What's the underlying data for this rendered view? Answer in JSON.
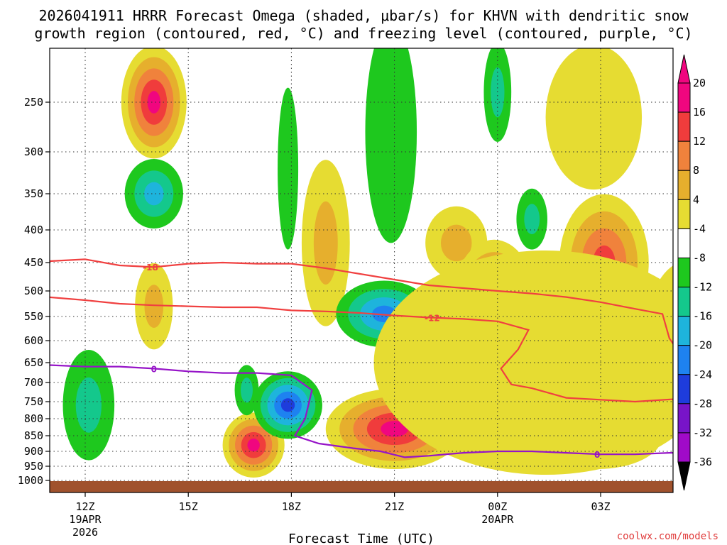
{
  "chart_data": {
    "type": "heatmap",
    "title_line1": "2026041911 HRRR Forecast Omega (shaded, μbar/s) for KHVN with dendritic snow",
    "title_line2": "growth region (contoured, red, °C) and freezing level (contoured, purple, °C)",
    "xlabel": "Forecast Time (UTC)",
    "ylabel": "",
    "credit": "coolwx.com/models",
    "x_range_hours": [
      10.9,
      29.75
    ],
    "y_range_hPa": [
      200,
      1025
    ],
    "x_ticks": [
      {
        "hour": 12,
        "label": "12Z",
        "sub1": "19APR",
        "sub2": "2026"
      },
      {
        "hour": 15,
        "label": "15Z",
        "sub1": "",
        "sub2": ""
      },
      {
        "hour": 18,
        "label": "18Z",
        "sub1": "",
        "sub2": ""
      },
      {
        "hour": 21,
        "label": "21Z",
        "sub1": "",
        "sub2": ""
      },
      {
        "hour": 24,
        "label": "00Z",
        "sub1": "20APR",
        "sub2": ""
      },
      {
        "hour": 27,
        "label": "03Z",
        "sub1": "",
        "sub2": ""
      }
    ],
    "y_ticks": [
      {
        "p": 250,
        "label": "250"
      },
      {
        "p": 300,
        "label": "300"
      },
      {
        "p": 350,
        "label": "350"
      },
      {
        "p": 400,
        "label": "400"
      },
      {
        "p": 450,
        "label": "450"
      },
      {
        "p": 500,
        "label": "500"
      },
      {
        "p": 550,
        "label": "550"
      },
      {
        "p": 600,
        "label": "600"
      },
      {
        "p": 650,
        "label": "650"
      },
      {
        "p": 700,
        "label": "700"
      },
      {
        "p": 750,
        "label": "750"
      },
      {
        "p": 800,
        "label": "800"
      },
      {
        "p": 850,
        "label": "850"
      },
      {
        "p": 900,
        "label": "900"
      },
      {
        "p": 950,
        "label": "950"
      },
      {
        "p": 1000,
        "label": "1000"
      }
    ],
    "colorbar": {
      "labels": [
        "20",
        "16",
        "12",
        "8",
        "4",
        "-4",
        "-8",
        "-12",
        "-16",
        "-20",
        "-24",
        "-28",
        "-32",
        "-36"
      ],
      "colors": [
        "#f0067f",
        "#f03c3c",
        "#f0823c",
        "#e6af2d",
        "#e6dc32",
        "#ffffff",
        "#1ec81e",
        "#14c88c",
        "#1eb4dc",
        "#1e82f0",
        "#1e3cdc",
        "#7814c8",
        "#a00ac8",
        "#a0a0a0"
      ],
      "over_color": "#f0067f",
      "under_color": "#000000"
    },
    "fill_colors": {
      "y4": "#e6dc32",
      "y8": "#e6af2d",
      "y12": "#f0823c",
      "y16": "#f03c3c",
      "y20": "#f0067f",
      "g4": "#1ec81e",
      "g8": "#14c88c",
      "g12": "#1eb4dc",
      "g16": "#1e82f0",
      "g20": "#1e3cdc"
    },
    "ground_color": "#a0522d",
    "dgz_color": "#f04040",
    "freezing_color": "#9614c8",
    "omega_blobs": [
      {
        "cx": 14.0,
        "cp": 250,
        "rx": 0.95,
        "rp": 58,
        "peak": "y20"
      },
      {
        "cx": 14.0,
        "cp": 350,
        "rx": 0.85,
        "rp": 48,
        "peak": "g12"
      },
      {
        "cx": 14.0,
        "cp": 530,
        "rx": 0.55,
        "rp": 90,
        "peak": "y8"
      },
      {
        "cx": 12.1,
        "cp": 760,
        "rx": 0.75,
        "rp": 170,
        "peak": "g8"
      },
      {
        "cx": 16.9,
        "cp": 880,
        "rx": 0.9,
        "rp": 110,
        "peak": "y20"
      },
      {
        "cx": 16.7,
        "cp": 720,
        "rx": 0.35,
        "rp": 70,
        "peak": "g8"
      },
      {
        "cx": 17.9,
        "cp": 320,
        "rx": 0.3,
        "rp": 110,
        "peak": "g4"
      },
      {
        "cx": 17.9,
        "cp": 760,
        "rx": 1.0,
        "rp": 100,
        "peak": "g20"
      },
      {
        "cx": 19.0,
        "cp": 420,
        "rx": 0.7,
        "rp": 150,
        "peak": "y8"
      },
      {
        "cx": 20.7,
        "cp": 545,
        "rx": 1.4,
        "rp": 70,
        "peak": "g16"
      },
      {
        "cx": 21.0,
        "cp": 830,
        "rx": 2.0,
        "rp": 130,
        "peak": "y20"
      },
      {
        "cx": 20.9,
        "cp": 280,
        "rx": 0.75,
        "rp": 140,
        "peak": "g4"
      },
      {
        "cx": 22.8,
        "cp": 420,
        "rx": 0.9,
        "rp": 60,
        "peak": "y8"
      },
      {
        "cx": 23.9,
        "cp": 520,
        "rx": 1.2,
        "rp": 130,
        "peak": "y20"
      },
      {
        "cx": 24.0,
        "cp": 240,
        "rx": 0.4,
        "rp": 50,
        "peak": "g8"
      },
      {
        "cx": 25.0,
        "cp": 385,
        "rx": 0.45,
        "rp": 45,
        "peak": "g8"
      },
      {
        "cx": 26.0,
        "cp": 590,
        "rx": 0.45,
        "rp": 45,
        "peak": "g8"
      },
      {
        "cx": 24.1,
        "cp": 760,
        "rx": 0.45,
        "rp": 40,
        "peak": "g8"
      },
      {
        "cx": 26.9,
        "cp": 850,
        "rx": 1.9,
        "rp": 110,
        "peak": "y20"
      },
      {
        "cx": 27.1,
        "cp": 450,
        "rx": 1.3,
        "rp": 130,
        "peak": "y16"
      },
      {
        "cx": 29.6,
        "cp": 560,
        "rx": 1.2,
        "rp": 140,
        "peak": "y12"
      },
      {
        "cx": 25.4,
        "cp": 650,
        "rx": 5.0,
        "rp": 330,
        "peak": "y4"
      },
      {
        "cx": 26.8,
        "cp": 265,
        "rx": 1.4,
        "rp": 80,
        "peak": "y4"
      }
    ],
    "dgz_contours": [
      {
        "label": "-18",
        "label_at_hour": 13.9,
        "points": [
          [
            10.9,
            448
          ],
          [
            12,
            445
          ],
          [
            13,
            455
          ],
          [
            14,
            458
          ],
          [
            15,
            452
          ],
          [
            16,
            450
          ],
          [
            17,
            452
          ],
          [
            18,
            452
          ],
          [
            19,
            460
          ],
          [
            20,
            470
          ],
          [
            21,
            480
          ],
          [
            22,
            490
          ],
          [
            23,
            495
          ],
          [
            24,
            500
          ],
          [
            25,
            505
          ],
          [
            26,
            512
          ],
          [
            27,
            522
          ],
          [
            28,
            535
          ],
          [
            28.8,
            545
          ],
          [
            29,
            595
          ],
          [
            29.4,
            640
          ],
          [
            29.75,
            655
          ]
        ]
      },
      {
        "label": "-12",
        "label_at_hour": 22.1,
        "points": [
          [
            10.9,
            512
          ],
          [
            12,
            518
          ],
          [
            13,
            525
          ],
          [
            14,
            528
          ],
          [
            15,
            530
          ],
          [
            16,
            532
          ],
          [
            17,
            532
          ],
          [
            18,
            538
          ],
          [
            19,
            540
          ],
          [
            20,
            543
          ],
          [
            21,
            548
          ],
          [
            22,
            552
          ],
          [
            23,
            555
          ],
          [
            24,
            560
          ],
          [
            24.9,
            578
          ],
          [
            24.6,
            620
          ],
          [
            24.1,
            665
          ],
          [
            24.4,
            705
          ],
          [
            25,
            715
          ],
          [
            26,
            740
          ],
          [
            27,
            745
          ],
          [
            28,
            750
          ],
          [
            29.75,
            740
          ]
        ]
      }
    ],
    "freezing_contour": {
      "label": "0",
      "label_at_hour": 14.0,
      "points": [
        [
          10.9,
          656
        ],
        [
          12,
          660
        ],
        [
          13,
          660
        ],
        [
          14,
          665
        ],
        [
          15,
          672
        ],
        [
          16,
          676
        ],
        [
          17,
          676
        ],
        [
          18,
          682
        ],
        [
          18.6,
          720
        ],
        [
          18.4,
          800
        ],
        [
          18.1,
          850
        ],
        [
          18.8,
          875
        ],
        [
          19.8,
          890
        ],
        [
          20.6,
          900
        ],
        [
          21.3,
          920
        ],
        [
          22,
          915
        ],
        [
          23,
          905
        ],
        [
          24,
          900
        ],
        [
          25,
          900
        ],
        [
          26,
          905
        ],
        [
          27,
          910
        ],
        [
          28,
          910
        ],
        [
          29,
          905
        ],
        [
          29.75,
          905
        ]
      ]
    },
    "freezing_second_label": {
      "label": "0",
      "hour": 26.9
    }
  }
}
